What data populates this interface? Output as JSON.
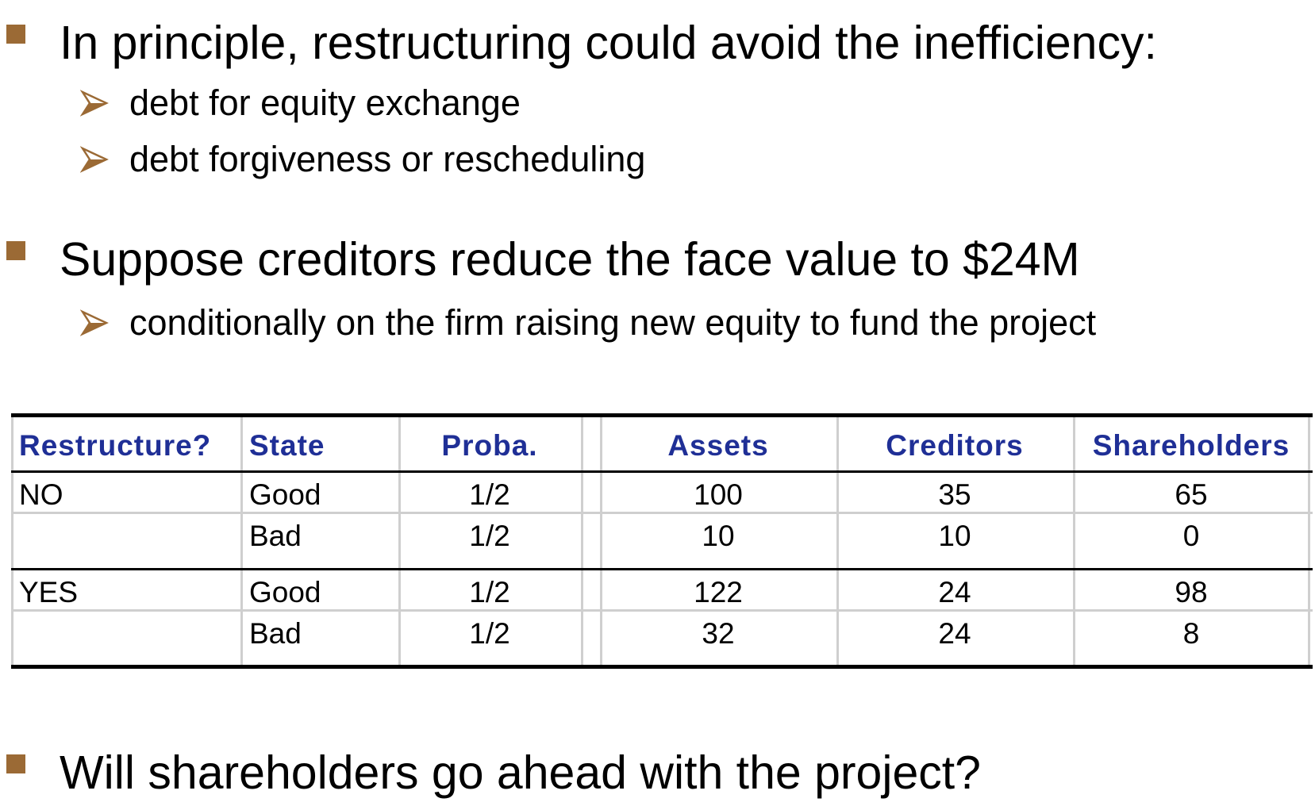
{
  "bullets": {
    "b1": "In principle, restructuring could avoid the inefficiency:",
    "b1_sub": [
      "debt for equity exchange",
      "debt forgiveness or rescheduling"
    ],
    "b2": "Suppose creditors reduce the face value to $24M",
    "b2_sub": [
      "conditionally on the firm raising new equity to fund the project"
    ],
    "b3": "Will shareholders go ahead with the project?"
  },
  "table": {
    "headers": [
      "Restructure?",
      "State",
      "Proba.",
      "Assets",
      "Creditors",
      "Shareholders"
    ],
    "rows": [
      [
        "NO",
        "Good",
        "1/2",
        "100",
        "35",
        "65"
      ],
      [
        "",
        "Bad",
        "1/2",
        "10",
        "10",
        "0"
      ],
      [
        "YES",
        "Good",
        "1/2",
        "122",
        "24",
        "98"
      ],
      [
        "",
        "Bad",
        "1/2",
        "32",
        "24",
        "8"
      ]
    ]
  },
  "colors": {
    "bullet_square": "#9b6a35",
    "arrow": "#9b6a35",
    "header_text": "#1f2f96"
  }
}
